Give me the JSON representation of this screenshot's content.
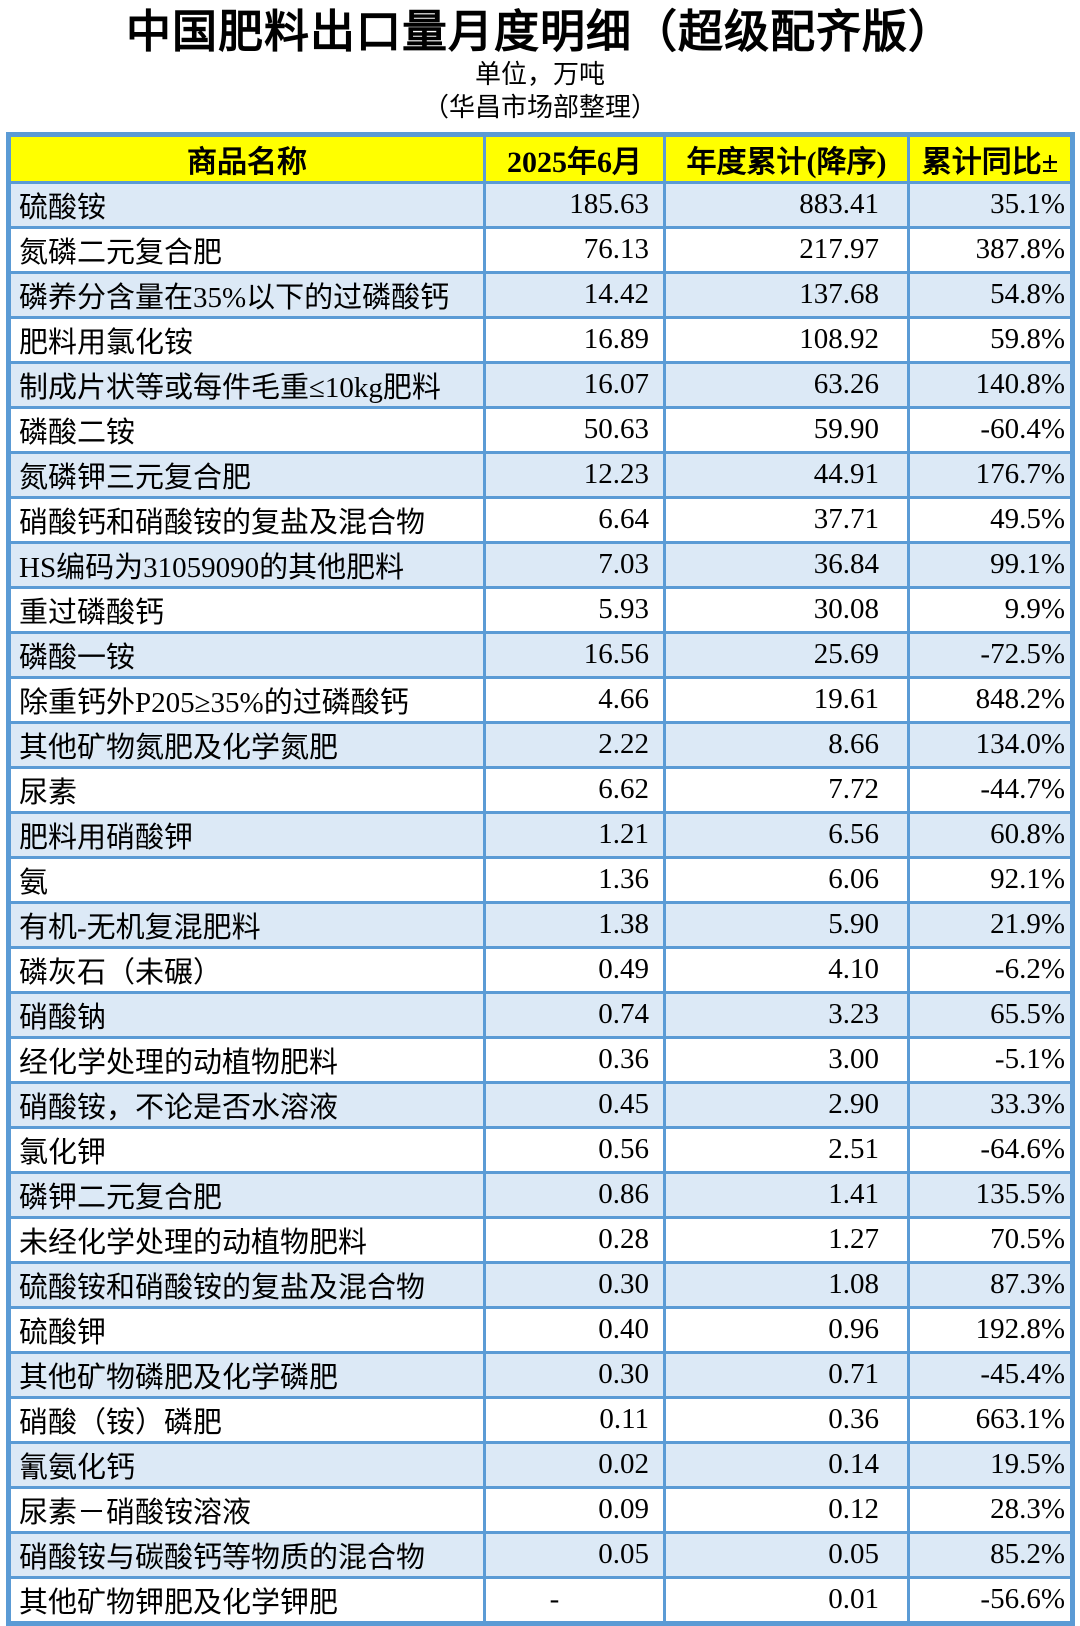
{
  "title": "中国肥料出口量月度明细（超级配齐版）",
  "subtitle_unit": "单位，万吨",
  "subtitle_source": "（华昌市场部整理）",
  "colors": {
    "border": "#5B9BD5",
    "header_bg": "#FFFF00",
    "row_alt_bg": "#DCE9F6",
    "row_bg": "#FFFFFF"
  },
  "table": {
    "columns": [
      "商品名称",
      "2025年6月",
      "年度累计(降序)",
      "累计同比±"
    ],
    "rows": [
      {
        "name": "硫酸铵",
        "jun": "185.63",
        "ytd": "883.41",
        "yoy": "35.1%"
      },
      {
        "name": "氮磷二元复合肥",
        "jun": "76.13",
        "ytd": "217.97",
        "yoy": "387.8%"
      },
      {
        "name": "磷养分含量在35%以下的过磷酸钙",
        "jun": "14.42",
        "ytd": "137.68",
        "yoy": "54.8%"
      },
      {
        "name": "肥料用氯化铵",
        "jun": "16.89",
        "ytd": "108.92",
        "yoy": "59.8%"
      },
      {
        "name": "制成片状等或每件毛重≤10kg肥料",
        "jun": "16.07",
        "ytd": "63.26",
        "yoy": "140.8%"
      },
      {
        "name": "磷酸二铵",
        "jun": "50.63",
        "ytd": "59.90",
        "yoy": "-60.4%"
      },
      {
        "name": "氮磷钾三元复合肥",
        "jun": "12.23",
        "ytd": "44.91",
        "yoy": "176.7%"
      },
      {
        "name": "硝酸钙和硝酸铵的复盐及混合物",
        "jun": "6.64",
        "ytd": "37.71",
        "yoy": "49.5%"
      },
      {
        "name": "HS编码为31059090的其他肥料",
        "jun": "7.03",
        "ytd": "36.84",
        "yoy": "99.1%"
      },
      {
        "name": "重过磷酸钙",
        "jun": "5.93",
        "ytd": "30.08",
        "yoy": "9.9%"
      },
      {
        "name": "磷酸一铵",
        "jun": "16.56",
        "ytd": "25.69",
        "yoy": "-72.5%"
      },
      {
        "name": "除重钙外P205≥35%的过磷酸钙",
        "jun": "4.66",
        "ytd": "19.61",
        "yoy": "848.2%"
      },
      {
        "name": "其他矿物氮肥及化学氮肥",
        "jun": "2.22",
        "ytd": "8.66",
        "yoy": "134.0%"
      },
      {
        "name": "尿素",
        "jun": "6.62",
        "ytd": "7.72",
        "yoy": "-44.7%"
      },
      {
        "name": "肥料用硝酸钾",
        "jun": "1.21",
        "ytd": "6.56",
        "yoy": "60.8%"
      },
      {
        "name": "氨",
        "jun": "1.36",
        "ytd": "6.06",
        "yoy": "92.1%"
      },
      {
        "name": "有机-无机复混肥料",
        "jun": "1.38",
        "ytd": "5.90",
        "yoy": "21.9%"
      },
      {
        "name": "磷灰石（未碾）",
        "jun": "0.49",
        "ytd": "4.10",
        "yoy": "-6.2%"
      },
      {
        "name": "硝酸钠",
        "jun": "0.74",
        "ytd": "3.23",
        "yoy": "65.5%"
      },
      {
        "name": "经化学处理的动植物肥料",
        "jun": "0.36",
        "ytd": "3.00",
        "yoy": "-5.1%"
      },
      {
        "name": "硝酸铵，不论是否水溶液",
        "jun": "0.45",
        "ytd": "2.90",
        "yoy": "33.3%"
      },
      {
        "name": "氯化钾",
        "jun": "0.56",
        "ytd": "2.51",
        "yoy": "-64.6%"
      },
      {
        "name": "磷钾二元复合肥",
        "jun": "0.86",
        "ytd": "1.41",
        "yoy": "135.5%"
      },
      {
        "name": "未经化学处理的动植物肥料",
        "jun": "0.28",
        "ytd": "1.27",
        "yoy": "70.5%"
      },
      {
        "name": "硫酸铵和硝酸铵的复盐及混合物",
        "jun": "0.30",
        "ytd": "1.08",
        "yoy": "87.3%"
      },
      {
        "name": "硫酸钾",
        "jun": "0.40",
        "ytd": "0.96",
        "yoy": "192.8%"
      },
      {
        "name": "其他矿物磷肥及化学磷肥",
        "jun": "0.30",
        "ytd": "0.71",
        "yoy": "-45.4%"
      },
      {
        "name": "硝酸（铵）磷肥",
        "jun": "0.11",
        "ytd": "0.36",
        "yoy": "663.1%"
      },
      {
        "name": "氰氨化钙",
        "jun": "0.02",
        "ytd": "0.14",
        "yoy": "19.5%"
      },
      {
        "name": "尿素－硝酸铵溶液",
        "jun": "0.09",
        "ytd": "0.12",
        "yoy": "28.3%"
      },
      {
        "name": "硝酸铵与碳酸钙等物质的混合物",
        "jun": "0.05",
        "ytd": "0.05",
        "yoy": "85.2%"
      },
      {
        "name": "其他矿物钾肥及化学钾肥",
        "jun": "-",
        "ytd": "0.01",
        "yoy": "-56.6%"
      }
    ]
  }
}
